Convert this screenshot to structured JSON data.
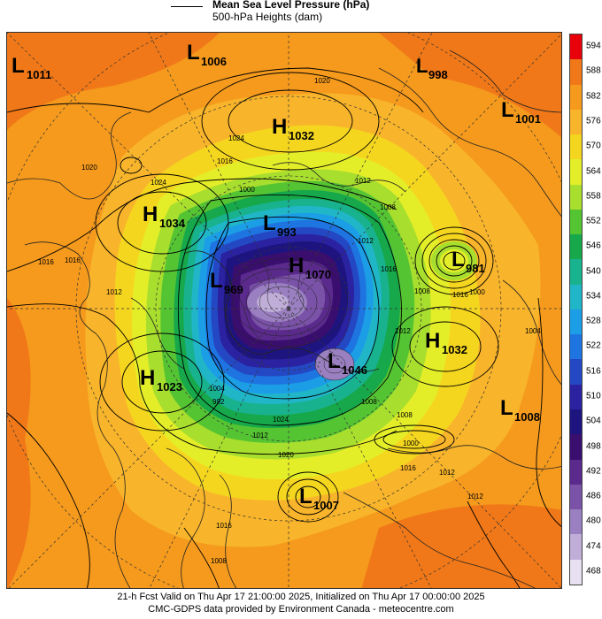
{
  "legend": {
    "line1": "Mean Sea Level Pressure (hPa)",
    "line2": "500-hPa Heights (dam)"
  },
  "colorbar": {
    "levels": [
      "594",
      "588",
      "582",
      "576",
      "570",
      "564",
      "558",
      "552",
      "546",
      "540",
      "534",
      "528",
      "522",
      "516",
      "510",
      "504",
      "498",
      "492",
      "486",
      "480",
      "474",
      "468"
    ],
    "colors": [
      "#e8000b",
      "#f07818",
      "#f59a1d",
      "#f8b42a",
      "#f5d61f",
      "#e4ee28",
      "#a8de2d",
      "#55c433",
      "#16a84a",
      "#19b28e",
      "#20b6c8",
      "#1c9ee6",
      "#1e74e0",
      "#2448c4",
      "#2a22a0",
      "#1e1480",
      "#3a0e6e",
      "#5a2a8c",
      "#7a52a8",
      "#9a80c0",
      "#c0aed8",
      "#e6e0f0"
    ]
  },
  "systems": [
    {
      "type": "L",
      "value": "1011"
    },
    {
      "type": "L",
      "value": "1006"
    },
    {
      "type": "L",
      "value": "998"
    },
    {
      "type": "L",
      "value": "1001"
    },
    {
      "type": "H",
      "value": "1032"
    },
    {
      "type": "H",
      "value": "1034"
    },
    {
      "type": "L",
      "value": "993"
    },
    {
      "type": "H",
      "value": "1070"
    },
    {
      "type": "L",
      "value": "969"
    },
    {
      "type": "L",
      "value": "981"
    },
    {
      "type": "H",
      "value": "1032"
    },
    {
      "type": "L",
      "value": "1046"
    },
    {
      "type": "H",
      "value": "1023"
    },
    {
      "type": "L",
      "value": "1008"
    },
    {
      "type": "L",
      "value": "1007"
    }
  ],
  "isobar_labels": [
    "1020",
    "1024",
    "1016",
    "1020",
    "1024",
    "1016",
    "1012",
    "1008",
    "1012",
    "1016",
    "1000",
    "1008",
    "1016",
    "1000",
    "1012",
    "1004",
    "1016",
    "1012",
    "992",
    "1004",
    "1012",
    "1016",
    "1020",
    "1024",
    "1008",
    "1008",
    "1000",
    "1016",
    "1012",
    "1012",
    "1008"
  ],
  "footer": {
    "line1": "21-h Fcst Valid on Thu Apr 17 21:00:00 2025, Initialized on Thu Apr 17 00:00:00 2025",
    "line2": "CMC-GDPS data provided by Environment Canada - meteocentre.com"
  }
}
